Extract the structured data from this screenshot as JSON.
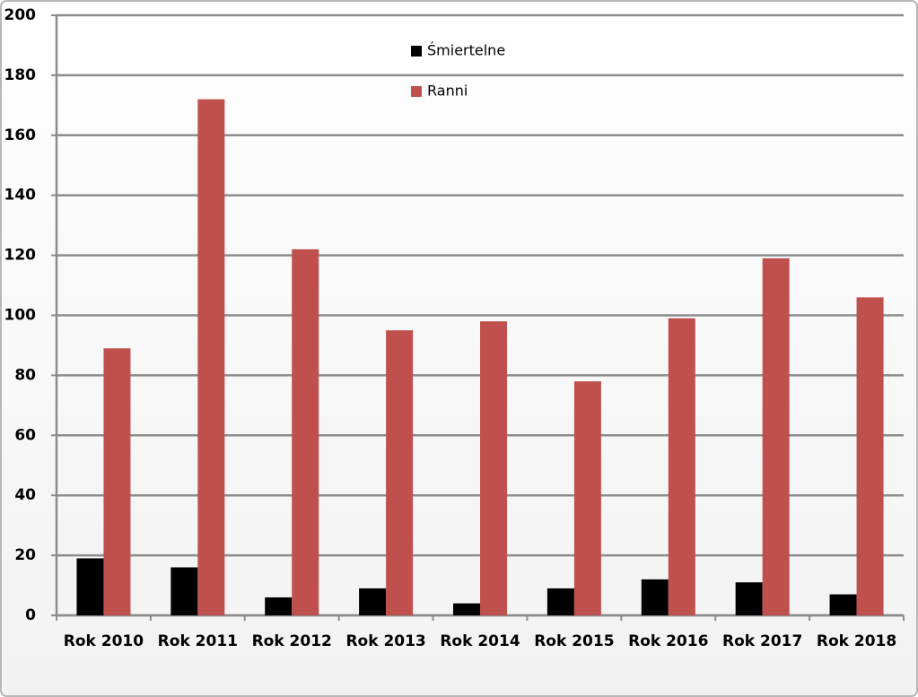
{
  "chart_data": {
    "type": "bar",
    "categories": [
      "Rok 2010",
      "Rok 2011",
      "Rok 2012",
      "Rok 2013",
      "Rok 2014",
      "Rok 2015",
      "Rok 2016",
      "Rok 2017",
      "Rok 2018"
    ],
    "series": [
      {
        "name": "Śmiertelne",
        "color": "#000000",
        "values": [
          19,
          16,
          6,
          9,
          4,
          9,
          12,
          11,
          7
        ]
      },
      {
        "name": "Ranni",
        "color": "#c0504d",
        "values": [
          89,
          172,
          122,
          95,
          98,
          78,
          99,
          119,
          106
        ]
      }
    ],
    "ylim": [
      0,
      200
    ],
    "yticks": [
      0,
      20,
      40,
      60,
      80,
      100,
      120,
      140,
      160,
      180,
      200
    ],
    "grid": true,
    "legend_position": "upper center"
  }
}
